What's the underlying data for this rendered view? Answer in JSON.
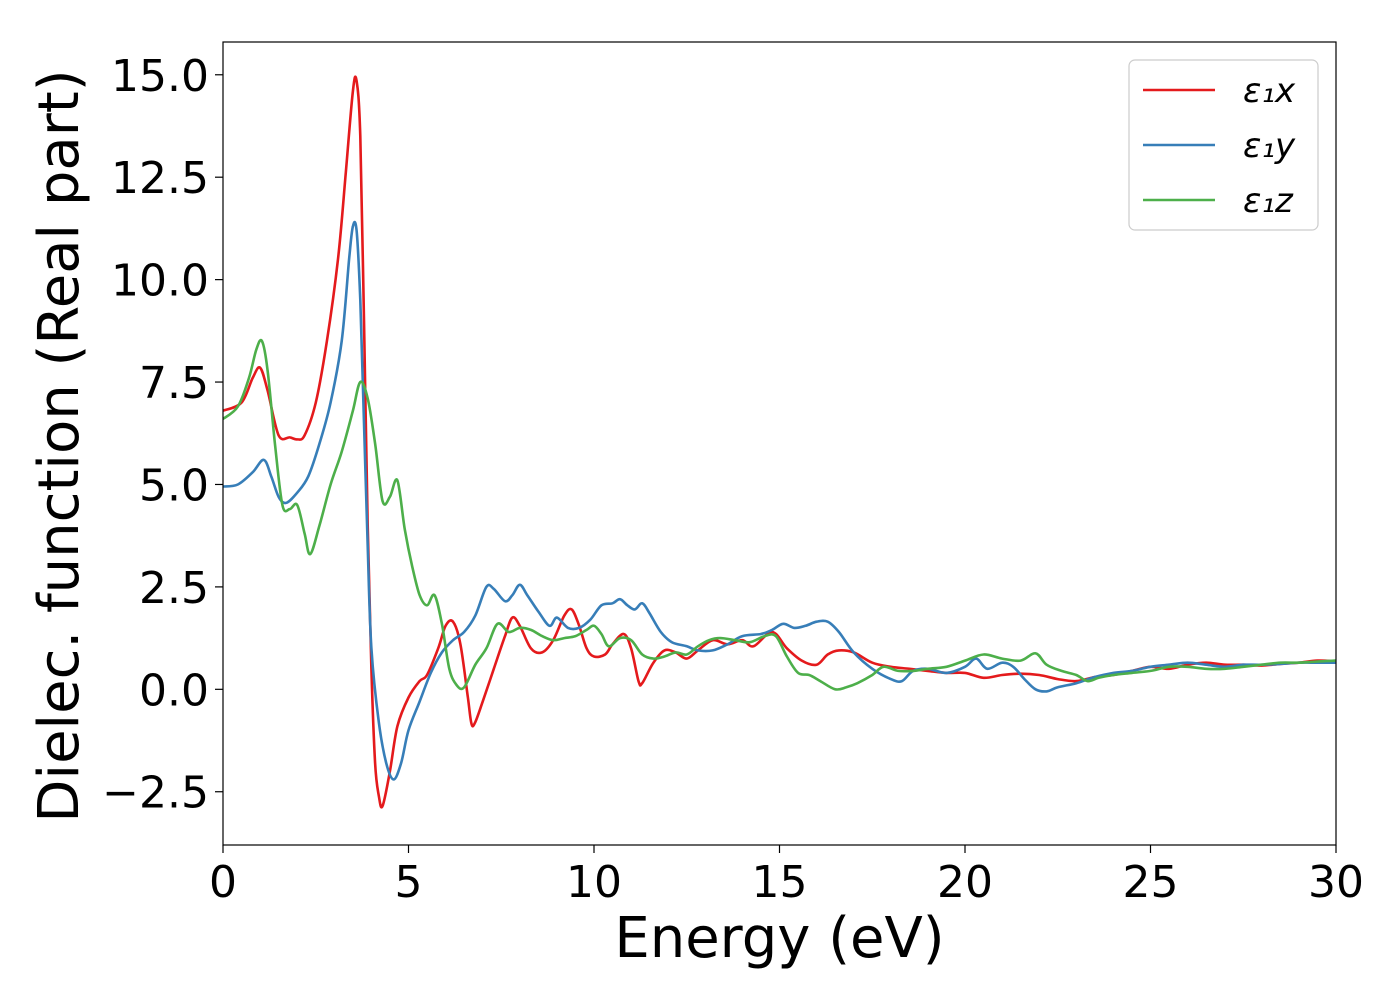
{
  "chart_data": {
    "type": "line",
    "title": "",
    "xlabel": "Energy (eV)",
    "ylabel": "Dielec. function (Real part)",
    "xlim": [
      0,
      30
    ],
    "ylim": [
      -3.8,
      15.8
    ],
    "xticks": [
      0,
      5,
      10,
      15,
      20,
      25,
      30
    ],
    "xtick_labels": [
      "0",
      "5",
      "10",
      "15",
      "20",
      "25",
      "30"
    ],
    "yticks": [
      -2.5,
      0.0,
      2.5,
      5.0,
      7.5,
      10.0,
      12.5,
      15.0
    ],
    "ytick_labels": [
      "−2.5",
      "0.0",
      "2.5",
      "5.0",
      "7.5",
      "10.0",
      "12.5",
      "15.0"
    ],
    "grid": false,
    "legend_position": "top-right",
    "series": [
      {
        "name": "ε₁x",
        "color": "#e41a1c",
        "points": [
          [
            0,
            6.8
          ],
          [
            0.5,
            7.0
          ],
          [
            0.8,
            7.6
          ],
          [
            1.0,
            7.85
          ],
          [
            1.2,
            7.3
          ],
          [
            1.5,
            6.2
          ],
          [
            1.8,
            6.15
          ],
          [
            2.0,
            6.1
          ],
          [
            2.2,
            6.2
          ],
          [
            2.5,
            7.0
          ],
          [
            2.8,
            8.5
          ],
          [
            3.1,
            10.5
          ],
          [
            3.3,
            12.5
          ],
          [
            3.5,
            14.6
          ],
          [
            3.6,
            14.85
          ],
          [
            3.7,
            13.5
          ],
          [
            3.8,
            9.0
          ],
          [
            3.9,
            4.0
          ],
          [
            4.0,
            0.5
          ],
          [
            4.1,
            -1.8
          ],
          [
            4.2,
            -2.6
          ],
          [
            4.3,
            -2.85
          ],
          [
            4.5,
            -2.0
          ],
          [
            4.7,
            -0.9
          ],
          [
            5.0,
            -0.2
          ],
          [
            5.3,
            0.2
          ],
          [
            5.5,
            0.35
          ],
          [
            5.8,
            1.0
          ],
          [
            6.0,
            1.55
          ],
          [
            6.2,
            1.65
          ],
          [
            6.4,
            1.1
          ],
          [
            6.6,
            -0.2
          ],
          [
            6.7,
            -0.85
          ],
          [
            6.8,
            -0.8
          ],
          [
            7.0,
            -0.3
          ],
          [
            7.3,
            0.5
          ],
          [
            7.6,
            1.3
          ],
          [
            7.8,
            1.75
          ],
          [
            8.0,
            1.55
          ],
          [
            8.3,
            1.0
          ],
          [
            8.6,
            0.9
          ],
          [
            8.9,
            1.2
          ],
          [
            9.2,
            1.8
          ],
          [
            9.4,
            1.95
          ],
          [
            9.6,
            1.55
          ],
          [
            9.8,
            1.0
          ],
          [
            10.0,
            0.8
          ],
          [
            10.3,
            0.85
          ],
          [
            10.5,
            1.1
          ],
          [
            10.8,
            1.35
          ],
          [
            11.0,
            1.0
          ],
          [
            11.2,
            0.2
          ],
          [
            11.3,
            0.15
          ],
          [
            11.6,
            0.65
          ],
          [
            11.9,
            0.95
          ],
          [
            12.2,
            0.9
          ],
          [
            12.5,
            0.75
          ],
          [
            12.8,
            0.95
          ],
          [
            13.2,
            1.2
          ],
          [
            13.6,
            1.1
          ],
          [
            14.0,
            1.2
          ],
          [
            14.3,
            1.05
          ],
          [
            14.8,
            1.4
          ],
          [
            15.2,
            1.0
          ],
          [
            15.6,
            0.7
          ],
          [
            16.0,
            0.6
          ],
          [
            16.3,
            0.85
          ],
          [
            16.6,
            0.95
          ],
          [
            17.0,
            0.9
          ],
          [
            17.5,
            0.65
          ],
          [
            18.0,
            0.55
          ],
          [
            18.5,
            0.5
          ],
          [
            19.0,
            0.45
          ],
          [
            19.5,
            0.4
          ],
          [
            20.0,
            0.4
          ],
          [
            20.5,
            0.28
          ],
          [
            21.0,
            0.35
          ],
          [
            21.5,
            0.38
          ],
          [
            22.0,
            0.35
          ],
          [
            22.5,
            0.25
          ],
          [
            23.0,
            0.2
          ],
          [
            23.5,
            0.3
          ],
          [
            24.0,
            0.35
          ],
          [
            24.5,
            0.45
          ],
          [
            25.0,
            0.55
          ],
          [
            25.5,
            0.5
          ],
          [
            26.0,
            0.6
          ],
          [
            26.5,
            0.65
          ],
          [
            27.0,
            0.6
          ],
          [
            27.5,
            0.6
          ],
          [
            28.0,
            0.58
          ],
          [
            28.5,
            0.62
          ],
          [
            29.0,
            0.65
          ],
          [
            29.5,
            0.7
          ],
          [
            30.0,
            0.68
          ]
        ]
      },
      {
        "name": "ε₁y",
        "color": "#377eb8",
        "points": [
          [
            0,
            4.95
          ],
          [
            0.4,
            5.0
          ],
          [
            0.8,
            5.3
          ],
          [
            1.1,
            5.6
          ],
          [
            1.3,
            5.2
          ],
          [
            1.5,
            4.7
          ],
          [
            1.7,
            4.55
          ],
          [
            2.0,
            4.8
          ],
          [
            2.3,
            5.2
          ],
          [
            2.6,
            6.0
          ],
          [
            2.9,
            7.0
          ],
          [
            3.2,
            8.5
          ],
          [
            3.4,
            10.5
          ],
          [
            3.5,
            11.3
          ],
          [
            3.6,
            11.2
          ],
          [
            3.7,
            9.5
          ],
          [
            3.8,
            6.5
          ],
          [
            3.9,
            3.5
          ],
          [
            4.0,
            1.0
          ],
          [
            4.2,
            -0.8
          ],
          [
            4.4,
            -1.8
          ],
          [
            4.6,
            -2.2
          ],
          [
            4.8,
            -1.8
          ],
          [
            5.0,
            -1.0
          ],
          [
            5.3,
            -0.3
          ],
          [
            5.6,
            0.4
          ],
          [
            5.9,
            0.9
          ],
          [
            6.2,
            1.2
          ],
          [
            6.5,
            1.4
          ],
          [
            6.8,
            1.8
          ],
          [
            7.1,
            2.5
          ],
          [
            7.3,
            2.45
          ],
          [
            7.6,
            2.15
          ],
          [
            7.8,
            2.3
          ],
          [
            8.0,
            2.55
          ],
          [
            8.2,
            2.3
          ],
          [
            8.5,
            1.9
          ],
          [
            8.8,
            1.55
          ],
          [
            9.0,
            1.75
          ],
          [
            9.3,
            1.5
          ],
          [
            9.6,
            1.5
          ],
          [
            9.9,
            1.7
          ],
          [
            10.2,
            2.05
          ],
          [
            10.5,
            2.1
          ],
          [
            10.7,
            2.2
          ],
          [
            10.9,
            2.05
          ],
          [
            11.1,
            1.95
          ],
          [
            11.3,
            2.1
          ],
          [
            11.5,
            1.85
          ],
          [
            11.8,
            1.4
          ],
          [
            12.1,
            1.15
          ],
          [
            12.5,
            1.05
          ],
          [
            12.8,
            0.95
          ],
          [
            13.2,
            0.95
          ],
          [
            13.6,
            1.1
          ],
          [
            14.0,
            1.3
          ],
          [
            14.5,
            1.35
          ],
          [
            14.8,
            1.45
          ],
          [
            15.1,
            1.6
          ],
          [
            15.4,
            1.5
          ],
          [
            15.7,
            1.55
          ],
          [
            16.0,
            1.65
          ],
          [
            16.3,
            1.65
          ],
          [
            16.6,
            1.4
          ],
          [
            17.0,
            0.9
          ],
          [
            17.5,
            0.5
          ],
          [
            18.0,
            0.25
          ],
          [
            18.3,
            0.2
          ],
          [
            18.6,
            0.45
          ],
          [
            19.0,
            0.5
          ],
          [
            19.5,
            0.4
          ],
          [
            20.0,
            0.55
          ],
          [
            20.3,
            0.75
          ],
          [
            20.6,
            0.5
          ],
          [
            21.0,
            0.65
          ],
          [
            21.3,
            0.55
          ],
          [
            21.6,
            0.25
          ],
          [
            21.9,
            0.0
          ],
          [
            22.2,
            -0.05
          ],
          [
            22.5,
            0.05
          ],
          [
            23.0,
            0.15
          ],
          [
            23.5,
            0.3
          ],
          [
            24.0,
            0.4
          ],
          [
            24.5,
            0.45
          ],
          [
            25.0,
            0.55
          ],
          [
            25.5,
            0.6
          ],
          [
            26.0,
            0.65
          ],
          [
            26.5,
            0.6
          ],
          [
            27.0,
            0.55
          ],
          [
            27.5,
            0.6
          ],
          [
            28.0,
            0.6
          ],
          [
            28.5,
            0.62
          ],
          [
            29.0,
            0.65
          ],
          [
            29.5,
            0.65
          ],
          [
            30.0,
            0.65
          ]
        ]
      },
      {
        "name": "ε₁z",
        "color": "#4daf4a",
        "points": [
          [
            0,
            6.6
          ],
          [
            0.4,
            6.9
          ],
          [
            0.7,
            7.6
          ],
          [
            0.9,
            8.3
          ],
          [
            1.05,
            8.5
          ],
          [
            1.2,
            7.8
          ],
          [
            1.4,
            6.0
          ],
          [
            1.6,
            4.5
          ],
          [
            1.8,
            4.4
          ],
          [
            2.0,
            4.5
          ],
          [
            2.2,
            3.8
          ],
          [
            2.35,
            3.3
          ],
          [
            2.6,
            4.0
          ],
          [
            2.9,
            5.0
          ],
          [
            3.2,
            5.8
          ],
          [
            3.5,
            6.8
          ],
          [
            3.7,
            7.5
          ],
          [
            3.9,
            7.1
          ],
          [
            4.1,
            6.0
          ],
          [
            4.3,
            4.6
          ],
          [
            4.5,
            4.7
          ],
          [
            4.7,
            5.1
          ],
          [
            4.9,
            3.9
          ],
          [
            5.1,
            3.0
          ],
          [
            5.3,
            2.3
          ],
          [
            5.5,
            2.05
          ],
          [
            5.7,
            2.3
          ],
          [
            5.9,
            1.6
          ],
          [
            6.1,
            0.5
          ],
          [
            6.3,
            0.1
          ],
          [
            6.5,
            0.05
          ],
          [
            6.8,
            0.6
          ],
          [
            7.1,
            1.0
          ],
          [
            7.4,
            1.6
          ],
          [
            7.7,
            1.4
          ],
          [
            8.0,
            1.5
          ],
          [
            8.3,
            1.45
          ],
          [
            8.6,
            1.3
          ],
          [
            8.9,
            1.2
          ],
          [
            9.2,
            1.25
          ],
          [
            9.5,
            1.3
          ],
          [
            9.8,
            1.45
          ],
          [
            10.0,
            1.55
          ],
          [
            10.2,
            1.35
          ],
          [
            10.4,
            1.05
          ],
          [
            10.7,
            1.25
          ],
          [
            11.0,
            1.2
          ],
          [
            11.3,
            0.85
          ],
          [
            11.6,
            0.75
          ],
          [
            11.9,
            0.8
          ],
          [
            12.2,
            0.9
          ],
          [
            12.5,
            0.85
          ],
          [
            12.8,
            1.05
          ],
          [
            13.1,
            1.2
          ],
          [
            13.4,
            1.25
          ],
          [
            13.8,
            1.2
          ],
          [
            14.2,
            1.15
          ],
          [
            14.6,
            1.3
          ],
          [
            14.9,
            1.3
          ],
          [
            15.2,
            0.8
          ],
          [
            15.5,
            0.4
          ],
          [
            15.8,
            0.35
          ],
          [
            16.1,
            0.2
          ],
          [
            16.5,
            0.0
          ],
          [
            16.8,
            0.05
          ],
          [
            17.1,
            0.15
          ],
          [
            17.5,
            0.35
          ],
          [
            17.8,
            0.55
          ],
          [
            18.2,
            0.45
          ],
          [
            18.6,
            0.45
          ],
          [
            19.0,
            0.5
          ],
          [
            19.5,
            0.55
          ],
          [
            20.0,
            0.7
          ],
          [
            20.5,
            0.85
          ],
          [
            21.0,
            0.75
          ],
          [
            21.5,
            0.7
          ],
          [
            21.9,
            0.88
          ],
          [
            22.2,
            0.6
          ],
          [
            22.6,
            0.45
          ],
          [
            23.0,
            0.35
          ],
          [
            23.3,
            0.2
          ],
          [
            23.6,
            0.28
          ],
          [
            24.0,
            0.35
          ],
          [
            24.5,
            0.4
          ],
          [
            25.0,
            0.45
          ],
          [
            25.5,
            0.55
          ],
          [
            26.0,
            0.55
          ],
          [
            26.5,
            0.5
          ],
          [
            27.0,
            0.5
          ],
          [
            27.5,
            0.55
          ],
          [
            28.0,
            0.6
          ],
          [
            28.5,
            0.65
          ],
          [
            29.0,
            0.65
          ],
          [
            29.5,
            0.68
          ],
          [
            30.0,
            0.7
          ]
        ]
      }
    ]
  }
}
